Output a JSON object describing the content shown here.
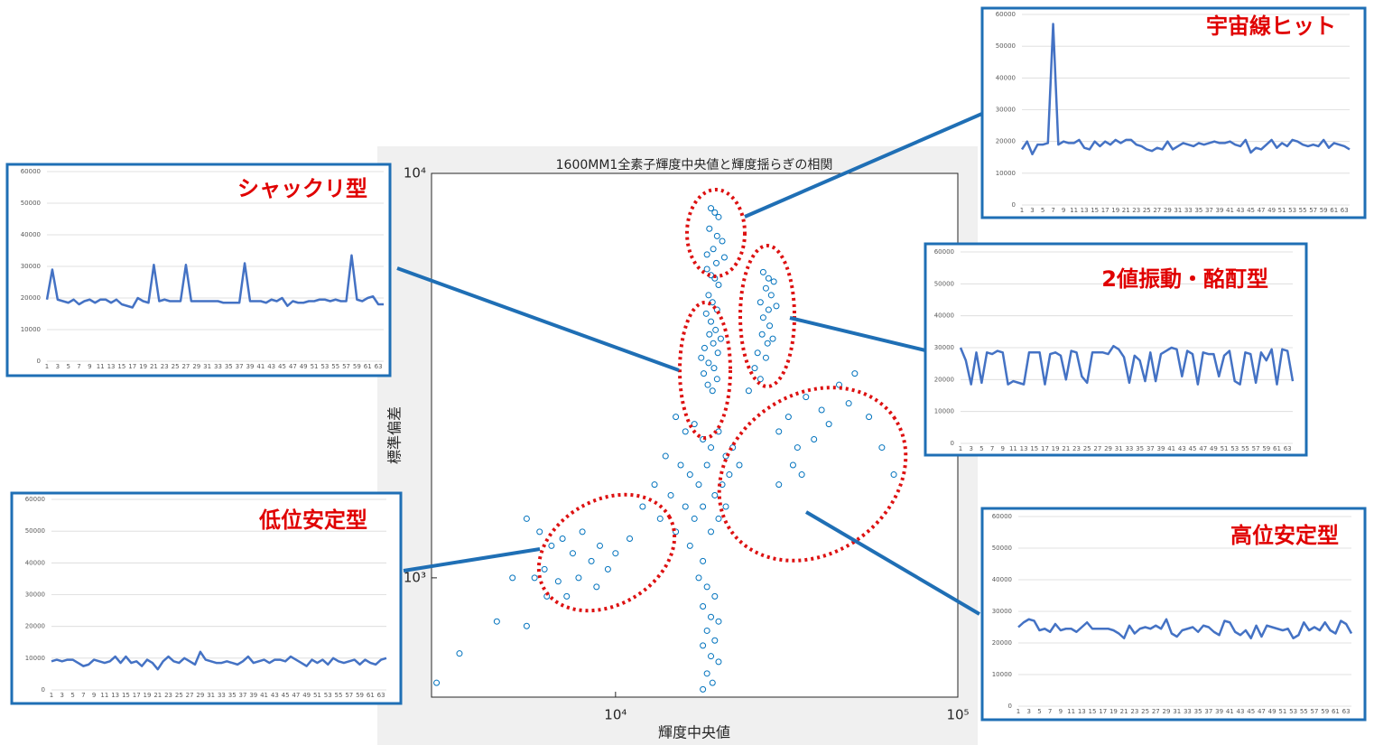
{
  "chart_data": [
    {
      "type": "scatter",
      "title": "1600MM1全素子輝度中央値と輝度揺らぎの相関",
      "x_label": "輝度中央値",
      "y_label": "標準偏差",
      "color": "#0072bd",
      "log_x": true,
      "log_y": true,
      "xlim": [
        2900,
        100000
      ],
      "ylim": [
        507,
        10000
      ],
      "xticks": [
        {
          "value": 10000,
          "label": "10⁴"
        },
        {
          "value": 100000,
          "label": "10⁵"
        }
      ],
      "yticks": [
        {
          "value": 1000,
          "label": "10³"
        },
        {
          "value": 10000,
          "label": "10⁴"
        }
      ],
      "x": [
        19000,
        19500,
        20000,
        18800,
        19800,
        20500,
        19300,
        18500,
        20800,
        19700,
        18500,
        19000,
        19500,
        20000,
        18700,
        19200,
        19800,
        18400,
        19000,
        19600,
        18800,
        19300,
        18200,
        19900,
        18700,
        19400,
        18100,
        19800,
        18600,
        19200,
        20300,
        17800,
        27000,
        28000,
        29000,
        27500,
        28500,
        26500,
        28000,
        29500,
        27000,
        28200,
        26800,
        27800,
        28800,
        26000,
        27500,
        25500,
        26500,
        24500,
        15000,
        16000,
        17000,
        18000,
        19000,
        20000,
        21000,
        22000,
        14000,
        15500,
        16500,
        17500,
        18500,
        19500,
        20500,
        21500,
        23000,
        13000,
        14500,
        16000,
        17000,
        18000,
        19000,
        20000,
        21000,
        12000,
        13500,
        15000,
        16500,
        18000,
        17500,
        18500,
        19500,
        18000,
        19000,
        20000,
        18500,
        19500,
        18000,
        19000,
        20000,
        18500,
        19200,
        18000,
        6000,
        6500,
        7000,
        7500,
        8000,
        8500,
        9000,
        9500,
        10000,
        11000,
        6200,
        6800,
        7200,
        7800,
        8800,
        5500,
        5800,
        6300,
        30000,
        32000,
        34000,
        36000,
        40000,
        42000,
        45000,
        48000,
        38000,
        33000,
        30000,
        35000,
        55000,
        60000,
        65000,
        50000,
        3000,
        3500,
        4500,
        5000,
        5500
      ],
      "values": [
        8200,
        8000,
        7800,
        7300,
        7000,
        6800,
        6500,
        6300,
        6200,
        6000,
        5800,
        5600,
        5500,
        5300,
        5000,
        4800,
        4600,
        4500,
        4300,
        4100,
        4000,
        3800,
        3700,
        3600,
        3400,
        3300,
        3200,
        3100,
        3000,
        2900,
        3900,
        3500,
        5700,
        5500,
        5400,
        5200,
        5000,
        4800,
        4600,
        4700,
        4400,
        4200,
        4000,
        3800,
        3900,
        3600,
        3500,
        3300,
        3100,
        2900,
        2500,
        2300,
        2400,
        2200,
        2100,
        2300,
        2000,
        2100,
        2000,
        1900,
        1800,
        1700,
        1900,
        1600,
        1700,
        1800,
        1900,
        1700,
        1600,
        1500,
        1400,
        1500,
        1300,
        1400,
        1500,
        1500,
        1400,
        1300,
        1200,
        1100,
        1000,
        950,
        900,
        850,
        800,
        780,
        740,
        700,
        680,
        640,
        620,
        580,
        550,
        530,
        1300,
        1200,
        1250,
        1150,
        1300,
        1100,
        1200,
        1050,
        1150,
        1250,
        1050,
        980,
        900,
        1000,
        950,
        1400,
        1000,
        900,
        2300,
        2500,
        2100,
        2800,
        2600,
        2400,
        3000,
        2700,
        2200,
        1900,
        1700,
        1800,
        2500,
        2100,
        1800,
        3200,
        550,
        650,
        780,
        1000,
        760
      ]
    },
    {
      "type": "line",
      "title": "宇宙線ヒット",
      "color": "#4472c4",
      "ylim": [
        0,
        60000
      ],
      "yticks": [
        0,
        10000,
        20000,
        30000,
        40000,
        50000,
        60000
      ],
      "categories": [
        1,
        null,
        3,
        null,
        5,
        null,
        7,
        null,
        9,
        null,
        11,
        null,
        13,
        null,
        15,
        null,
        17,
        null,
        19,
        null,
        21,
        null,
        23,
        null,
        25,
        null,
        27,
        null,
        29,
        null,
        31,
        null,
        33,
        null,
        35,
        null,
        37,
        null,
        39,
        null,
        41,
        null,
        43,
        null,
        45,
        null,
        47,
        null,
        49,
        null,
        51,
        null,
        53,
        null,
        55,
        null,
        57,
        null,
        59,
        null,
        61,
        null,
        63,
        null
      ],
      "values": [
        17500,
        20000,
        16000,
        19000,
        19000,
        19500,
        57000,
        19000,
        20000,
        19500,
        19500,
        20500,
        18000,
        17500,
        20000,
        18500,
        20000,
        19000,
        20500,
        19500,
        20500,
        20500,
        19000,
        18500,
        17500,
        17000,
        18000,
        17500,
        20000,
        17500,
        18500,
        19500,
        19000,
        18500,
        19500,
        19000,
        19500,
        20000,
        19500,
        19500,
        20000,
        19000,
        18500,
        20500,
        16500,
        18000,
        17500,
        19000,
        20500,
        18000,
        19500,
        18500,
        20500,
        20000,
        19000,
        18500,
        19000,
        18500,
        20500,
        18000,
        19500,
        19000,
        18500,
        17500
      ]
    },
    {
      "type": "line",
      "title": "シャックリ型",
      "color": "#4472c4",
      "ylim": [
        0,
        60000
      ],
      "yticks": [
        0,
        10000,
        20000,
        30000,
        40000,
        50000,
        60000
      ],
      "categories": [
        1,
        null,
        3,
        null,
        5,
        null,
        7,
        null,
        9,
        null,
        11,
        null,
        13,
        null,
        15,
        null,
        17,
        null,
        19,
        null,
        21,
        null,
        23,
        null,
        25,
        null,
        27,
        null,
        29,
        null,
        31,
        null,
        33,
        null,
        35,
        null,
        37,
        null,
        39,
        null,
        41,
        null,
        43,
        null,
        45,
        null,
        47,
        null,
        49,
        null,
        51,
        null,
        53,
        null,
        55,
        null,
        57,
        null,
        59,
        null,
        61,
        null,
        63,
        null
      ],
      "values": [
        19500,
        29000,
        19500,
        19000,
        18500,
        19500,
        18000,
        19000,
        19500,
        18500,
        19500,
        19500,
        18500,
        19500,
        18000,
        17500,
        17000,
        20000,
        19000,
        18500,
        30500,
        19000,
        19500,
        19000,
        19000,
        19000,
        30500,
        19000,
        19000,
        19000,
        19000,
        19000,
        19000,
        18500,
        18500,
        18500,
        18500,
        31000,
        19000,
        19000,
        19000,
        18500,
        19500,
        19000,
        20000,
        17500,
        19000,
        18500,
        18500,
        19000,
        19000,
        19500,
        19500,
        19000,
        19500,
        19000,
        19000,
        33500,
        19500,
        19000,
        20000,
        20500,
        18000,
        18000
      ]
    },
    {
      "type": "line",
      "title": "2値振動・酩酊型",
      "color": "#4472c4",
      "ylim": [
        0,
        60000
      ],
      "yticks": [
        0,
        10000,
        20000,
        30000,
        40000,
        50000,
        60000
      ],
      "categories": [
        1,
        null,
        3,
        null,
        5,
        null,
        7,
        null,
        9,
        null,
        11,
        null,
        13,
        null,
        15,
        null,
        17,
        null,
        19,
        null,
        21,
        null,
        23,
        null,
        25,
        null,
        27,
        null,
        29,
        null,
        31,
        null,
        33,
        null,
        35,
        null,
        37,
        null,
        39,
        null,
        41,
        null,
        43,
        null,
        45,
        null,
        47,
        null,
        49,
        null,
        51,
        null,
        53,
        null,
        55,
        null,
        57,
        null,
        59,
        null,
        61,
        null,
        63,
        null
      ],
      "values": [
        30000,
        26000,
        18500,
        28500,
        19000,
        28500,
        28000,
        29000,
        28500,
        18500,
        19500,
        19000,
        18500,
        28500,
        28500,
        28500,
        18500,
        28000,
        28500,
        27500,
        20000,
        29000,
        28500,
        21000,
        19000,
        28500,
        28500,
        28500,
        28000,
        30500,
        29500,
        27000,
        19000,
        27500,
        26000,
        19500,
        28500,
        19500,
        28000,
        29000,
        30000,
        29500,
        21000,
        29000,
        28000,
        18500,
        28500,
        28000,
        28000,
        21000,
        27500,
        29000,
        19500,
        18500,
        28500,
        28000,
        19000,
        28500,
        26000,
        29500,
        18500,
        29500,
        29000,
        19500
      ]
    },
    {
      "type": "line",
      "title": "低位安定型",
      "color": "#4472c4",
      "ylim": [
        0,
        60000
      ],
      "yticks": [
        0,
        10000,
        20000,
        30000,
        40000,
        50000,
        60000
      ],
      "categories": [
        1,
        null,
        3,
        null,
        5,
        null,
        7,
        null,
        9,
        null,
        11,
        null,
        13,
        null,
        15,
        null,
        17,
        null,
        19,
        null,
        21,
        null,
        23,
        null,
        25,
        null,
        27,
        null,
        29,
        null,
        31,
        null,
        33,
        null,
        35,
        null,
        37,
        null,
        39,
        null,
        41,
        null,
        43,
        null,
        45,
        null,
        47,
        null,
        49,
        null,
        51,
        null,
        53,
        null,
        55,
        null,
        57,
        null,
        59,
        null,
        61,
        null,
        63,
        null
      ],
      "values": [
        9000,
        9500,
        9000,
        9500,
        9500,
        8500,
        7500,
        8000,
        9500,
        9000,
        8500,
        9000,
        10500,
        8500,
        10500,
        8500,
        9000,
        7500,
        9500,
        8500,
        6500,
        9000,
        10500,
        9000,
        8500,
        10000,
        9000,
        8000,
        12000,
        9500,
        9000,
        8500,
        8500,
        9000,
        8500,
        8000,
        9000,
        10500,
        8500,
        9000,
        9500,
        8500,
        9500,
        9500,
        9000,
        10500,
        9500,
        8500,
        7500,
        9500,
        8500,
        9500,
        8000,
        10000,
        9000,
        8500,
        9000,
        9500,
        8000,
        9500,
        8500,
        8000,
        9500,
        10000
      ]
    },
    {
      "type": "line",
      "title": "高位安定型",
      "color": "#4472c4",
      "ylim": [
        0,
        60000
      ],
      "yticks": [
        0,
        10000,
        20000,
        30000,
        40000,
        50000,
        60000
      ],
      "categories": [
        1,
        null,
        3,
        null,
        5,
        null,
        7,
        null,
        9,
        null,
        11,
        null,
        13,
        null,
        15,
        null,
        17,
        null,
        19,
        null,
        21,
        null,
        23,
        null,
        25,
        null,
        27,
        null,
        29,
        null,
        31,
        null,
        33,
        null,
        35,
        null,
        37,
        null,
        39,
        null,
        41,
        null,
        43,
        null,
        45,
        null,
        47,
        null,
        49,
        null,
        51,
        null,
        53,
        null,
        55,
        null,
        57,
        null,
        59,
        null,
        61,
        null,
        63,
        null
      ],
      "values": [
        25000,
        26500,
        27500,
        27000,
        24000,
        24500,
        23500,
        26000,
        24000,
        24500,
        24500,
        23500,
        25000,
        26500,
        24500,
        24500,
        24500,
        24500,
        24000,
        23000,
        21500,
        25500,
        23000,
        24500,
        25000,
        24500,
        25500,
        24500,
        27500,
        23000,
        22000,
        24000,
        24500,
        25000,
        23500,
        25500,
        25000,
        23500,
        22500,
        27000,
        26500,
        23500,
        22500,
        24000,
        21500,
        25500,
        22000,
        25500,
        25000,
        24500,
        24000,
        24500,
        21500,
        22500,
        26500,
        24000,
        25000,
        24000,
        26500,
        24000,
        23000,
        27000,
        26000,
        23000
      ]
    }
  ]
}
